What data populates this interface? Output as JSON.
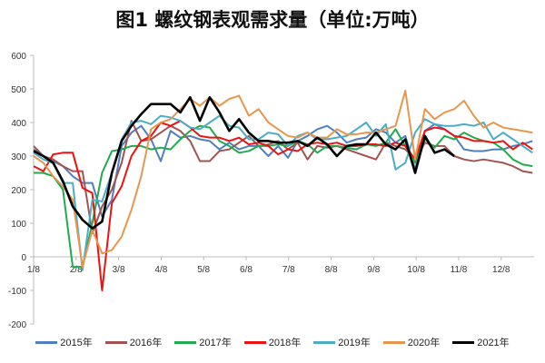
{
  "chart_data": {
    "type": "line",
    "title": "图1 螺纹钢表观需求量（单位:万吨）",
    "xlabel": "",
    "ylabel": "",
    "x_unit": "week index from 1/8",
    "ylim": [
      -200,
      600
    ],
    "yticks": [
      "600",
      "500",
      "400",
      "300",
      "200",
      "100",
      "0",
      "-100",
      "-200"
    ],
    "ytick_values": [
      600,
      500,
      400,
      300,
      200,
      100,
      0,
      -100,
      -200
    ],
    "xticks": [
      "1/8",
      "2/8",
      "3/8",
      "4/8",
      "5/8",
      "6/8",
      "7/8",
      "8/8",
      "9/8",
      "10/8",
      "11/8",
      "12/8"
    ],
    "grid": false,
    "legend_position": "bottom",
    "series": [
      {
        "name": "2015年",
        "color": "#4F7FBE",
        "values": [
          320,
          300,
          285,
          270,
          240,
          220,
          220,
          120,
          170,
          330,
          370,
          390,
          350,
          285,
          375,
          355,
          360,
          350,
          345,
          320,
          340,
          320,
          330,
          330,
          300,
          330,
          295,
          345,
          360,
          380,
          390,
          370,
          340,
          350,
          355,
          380,
          370,
          340,
          360,
          260,
          375,
          395,
          380,
          360,
          320,
          315,
          315,
          320,
          320,
          330,
          335,
          345
        ]
      },
      {
        "name": "2016年",
        "color": "#A05452",
        "values": [
          330,
          300,
          290,
          270,
          255,
          255,
          70,
          150,
          200,
          280,
          405,
          345,
          350,
          370,
          390,
          375,
          345,
          285,
          285,
          315,
          320,
          340,
          360,
          330,
          335,
          345,
          320,
          340,
          290,
          330,
          325,
          330,
          320,
          310,
          300,
          290,
          340,
          330,
          320,
          290,
          340,
          330,
          330,
          300,
          290,
          285,
          290,
          285,
          280,
          270,
          255,
          250
        ]
      },
      {
        "name": "2017年",
        "color": "#22AA4E",
        "values": [
          250,
          250,
          240,
          200,
          -30,
          -30,
          100,
          250,
          315,
          320,
          330,
          330,
          320,
          325,
          320,
          350,
          375,
          390,
          385,
          345,
          330,
          310,
          315,
          330,
          330,
          335,
          330,
          345,
          335,
          310,
          330,
          330,
          325,
          320,
          335,
          330,
          340,
          380,
          330,
          280,
          350,
          325,
          360,
          350,
          370,
          355,
          345,
          340,
          320,
          290,
          275,
          270
        ]
      },
      {
        "name": "2018年",
        "color": "#EE1111",
        "values": [
          270,
          255,
          305,
          310,
          310,
          205,
          190,
          -100,
          160,
          210,
          300,
          345,
          360,
          400,
          390,
          405,
          385,
          360,
          355,
          355,
          345,
          355,
          335,
          340,
          330,
          305,
          320,
          315,
          335,
          340,
          335,
          340,
          330,
          330,
          335,
          335,
          330,
          340,
          330,
          290,
          375,
          385,
          380,
          360,
          355,
          345,
          345,
          340,
          345,
          320,
          340,
          320
        ]
      },
      {
        "name": "2019年",
        "color": "#4BACC6",
        "values": [
          310,
          290,
          280,
          220,
          220,
          -40,
          170,
          165,
          250,
          350,
          400,
          405,
          395,
          420,
          415,
          405,
          385,
          380,
          400,
          420,
          390,
          385,
          350,
          350,
          370,
          365,
          330,
          360,
          370,
          350,
          350,
          355,
          360,
          380,
          400,
          360,
          395,
          260,
          280,
          370,
          410,
          395,
          390,
          390,
          395,
          390,
          400,
          350,
          370,
          350,
          330,
          310
        ]
      },
      {
        "name": "2020年",
        "color": "#E8964E",
        "values": [
          300,
          280,
          240,
          210,
          170,
          -30,
          80,
          10,
          20,
          60,
          140,
          240,
          380,
          400,
          410,
          440,
          470,
          450,
          475,
          450,
          470,
          480,
          420,
          440,
          400,
          380,
          360,
          355,
          370,
          355,
          355,
          380,
          365,
          365,
          370,
          370,
          380,
          390,
          495,
          290,
          440,
          410,
          430,
          440,
          465,
          420,
          385,
          400,
          385,
          380,
          375,
          370
        ]
      },
      {
        "name": "2021年",
        "color": "#000000",
        "values": [
          315,
          300,
          280,
          225,
          150,
          110,
          85,
          105,
          250,
          345,
          390,
          425,
          455,
          455,
          455,
          430,
          475,
          405,
          475,
          430,
          375,
          410,
          370,
          345,
          345,
          340,
          340,
          345,
          330,
          355,
          335,
          300,
          330,
          335,
          335,
          370,
          335,
          320,
          350,
          250,
          360,
          310,
          320,
          300
        ]
      }
    ]
  }
}
